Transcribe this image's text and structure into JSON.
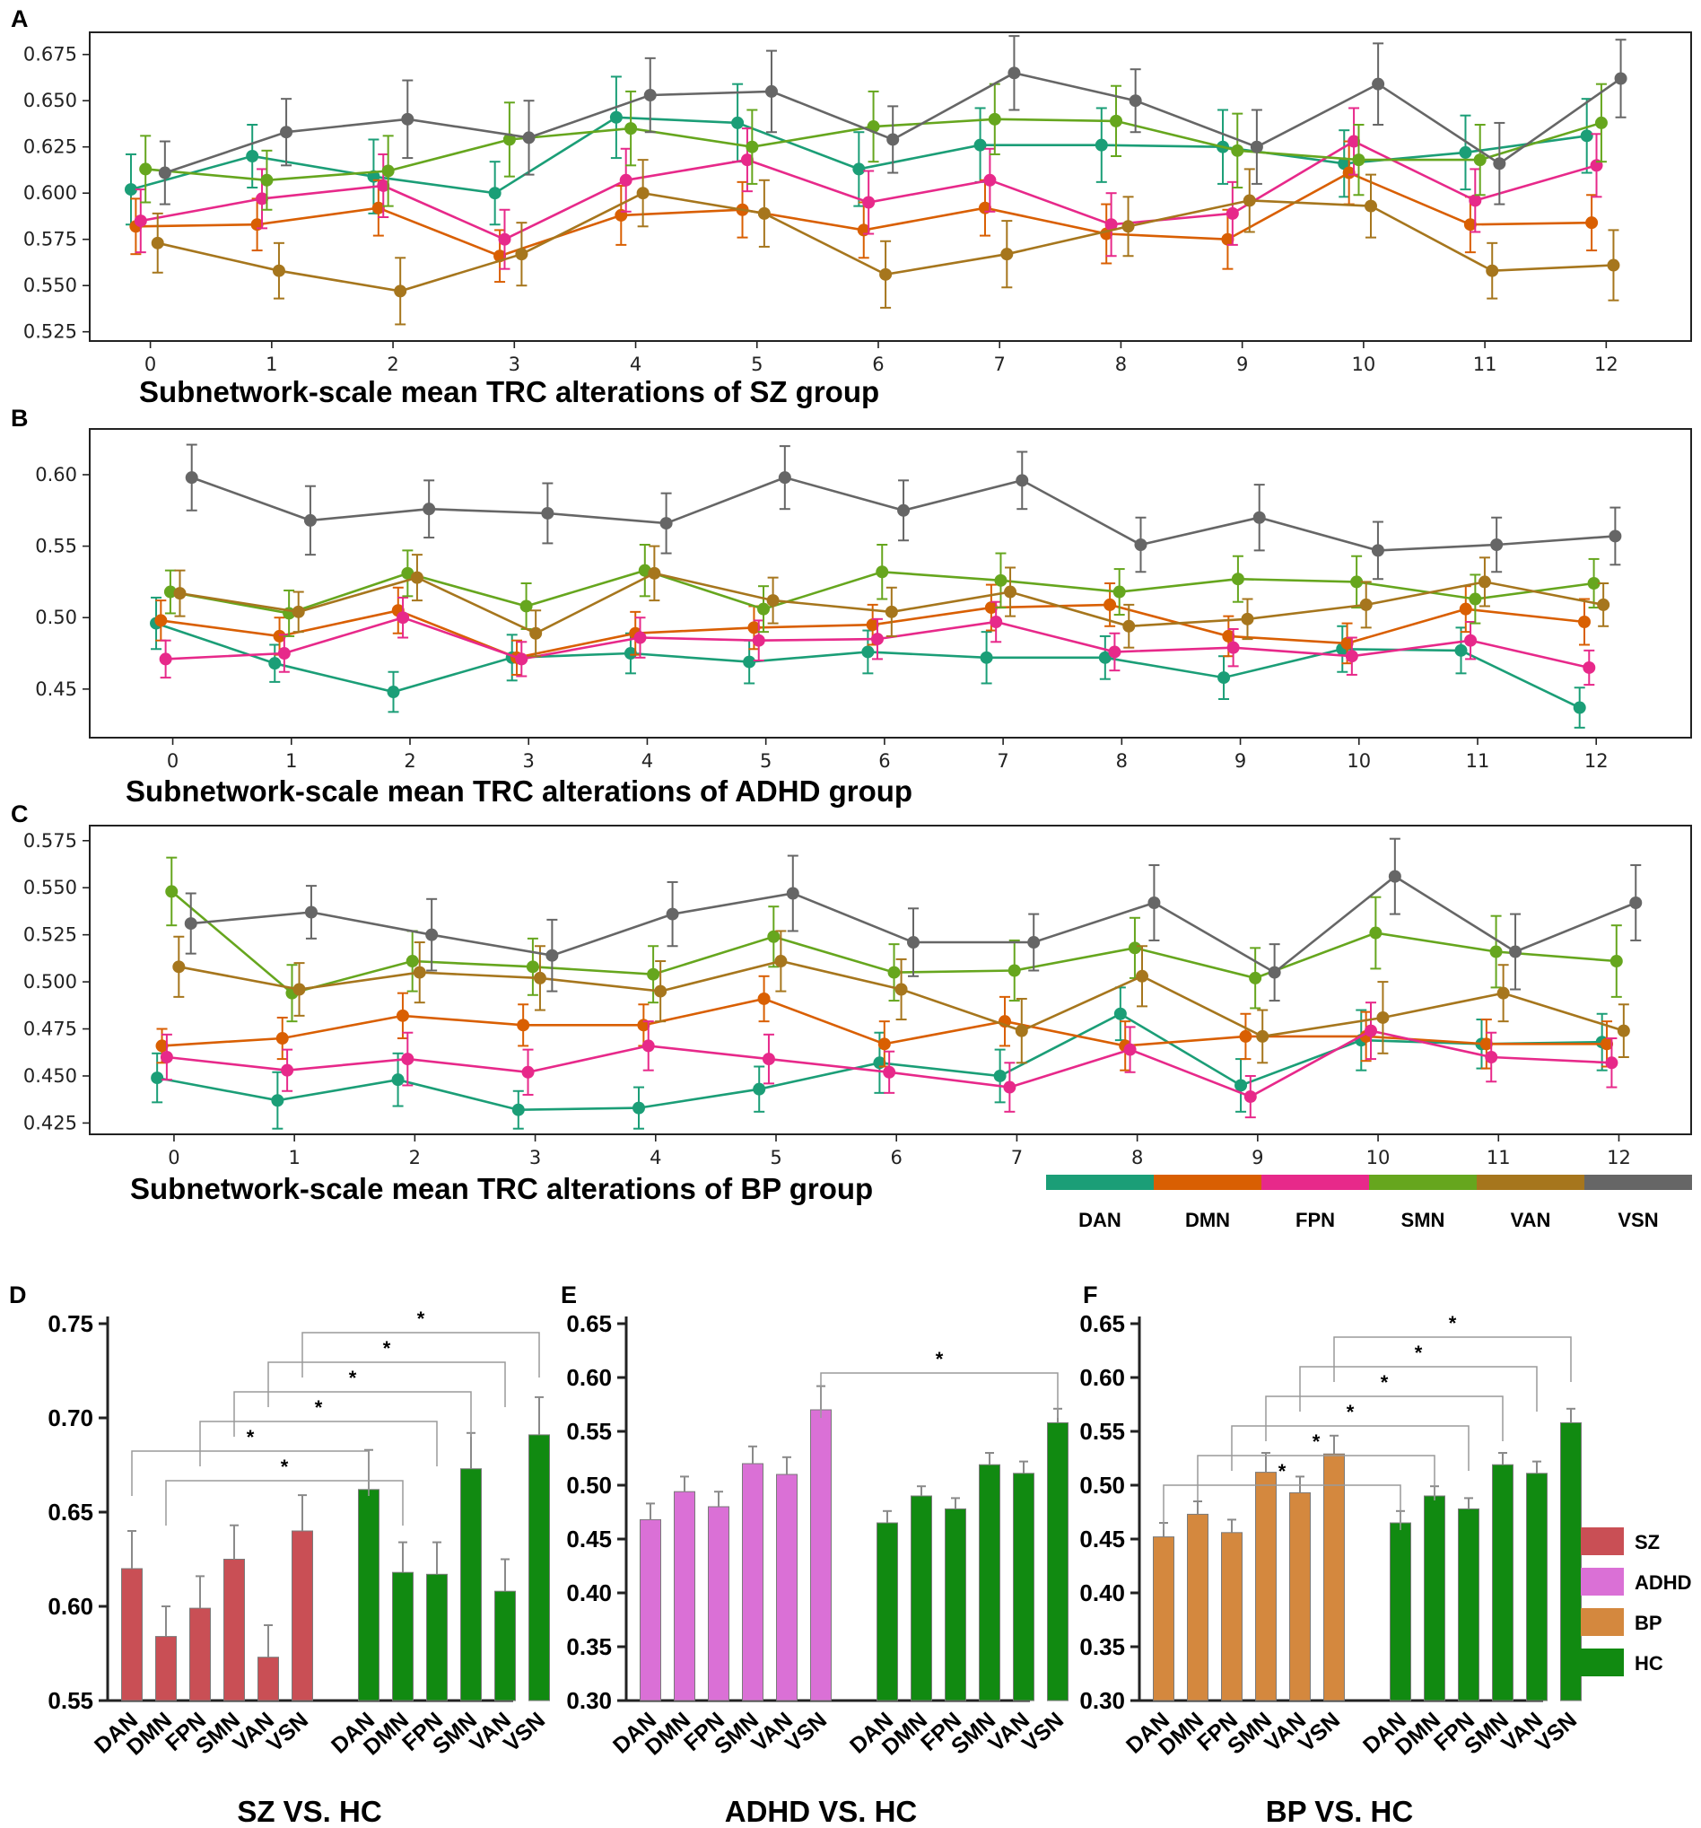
{
  "colors": {
    "DAN": "#1b9e77",
    "DMN": "#d95f02",
    "FPN": "#e7298a",
    "SMN": "#66a61e",
    "VAN": "#a6761d",
    "VSN": "#666666",
    "SZ": "#c94f55",
    "ADHD": "#da70d6",
    "BP": "#d4883e",
    "HC": "#118a11"
  },
  "network_legend": [
    "DAN",
    "DMN",
    "FPN",
    "SMN",
    "VAN",
    "VSN"
  ],
  "chart_data": [
    {
      "panel": "A",
      "type": "line",
      "title": "Subnetwork-scale mean TRC alterations of SZ group",
      "x": [
        0,
        1,
        2,
        3,
        4,
        5,
        6,
        7,
        8,
        9,
        10,
        11,
        12
      ],
      "xlim": [
        -0.5,
        12.7
      ],
      "ylim": [
        0.52,
        0.687
      ],
      "yticks": [
        "0.525",
        "0.550",
        "0.575",
        "0.600",
        "0.625",
        "0.650",
        "0.675"
      ],
      "series": [
        {
          "name": "DAN",
          "offset": -0.16,
          "values": [
            0.602,
            0.62,
            0.609,
            0.6,
            0.641,
            0.638,
            0.613,
            0.626,
            0.626,
            0.625,
            0.616,
            0.622,
            0.631
          ],
          "errors": [
            0.019,
            0.017,
            0.02,
            0.017,
            0.022,
            0.021,
            0.02,
            0.02,
            0.02,
            0.02,
            0.018,
            0.02,
            0.02
          ]
        },
        {
          "name": "DMN",
          "offset": -0.12,
          "values": [
            0.582,
            0.583,
            0.592,
            0.566,
            0.588,
            0.591,
            0.58,
            0.592,
            0.578,
            0.575,
            0.611,
            0.583,
            0.584
          ],
          "errors": [
            0.015,
            0.014,
            0.015,
            0.014,
            0.016,
            0.015,
            0.015,
            0.015,
            0.016,
            0.016,
            0.017,
            0.015,
            0.015
          ]
        },
        {
          "name": "FPN",
          "offset": -0.08,
          "values": [
            0.585,
            0.597,
            0.604,
            0.575,
            0.607,
            0.618,
            0.595,
            0.607,
            0.583,
            0.589,
            0.628,
            0.596,
            0.615
          ],
          "errors": [
            0.017,
            0.016,
            0.017,
            0.016,
            0.017,
            0.017,
            0.017,
            0.017,
            0.017,
            0.017,
            0.018,
            0.017,
            0.017
          ]
        },
        {
          "name": "SMN",
          "offset": -0.04,
          "values": [
            0.613,
            0.607,
            0.612,
            0.629,
            0.635,
            0.625,
            0.636,
            0.64,
            0.639,
            0.623,
            0.618,
            0.618,
            0.638
          ],
          "errors": [
            0.018,
            0.016,
            0.019,
            0.02,
            0.02,
            0.02,
            0.019,
            0.019,
            0.019,
            0.02,
            0.019,
            0.019,
            0.021
          ]
        },
        {
          "name": "VAN",
          "offset": 0.06,
          "values": [
            0.573,
            0.558,
            0.547,
            0.567,
            0.6,
            0.589,
            0.556,
            0.567,
            0.582,
            0.596,
            0.593,
            0.558,
            0.561
          ],
          "errors": [
            0.016,
            0.015,
            0.018,
            0.017,
            0.018,
            0.018,
            0.018,
            0.018,
            0.016,
            0.017,
            0.017,
            0.015,
            0.019
          ]
        },
        {
          "name": "VSN",
          "offset": 0.12,
          "values": [
            0.611,
            0.633,
            0.64,
            0.63,
            0.653,
            0.655,
            0.629,
            0.665,
            0.65,
            0.625,
            0.659,
            0.616,
            0.662
          ],
          "errors": [
            0.017,
            0.018,
            0.021,
            0.02,
            0.02,
            0.022,
            0.018,
            0.02,
            0.017,
            0.02,
            0.022,
            0.022,
            0.021
          ]
        }
      ]
    },
    {
      "panel": "B",
      "type": "line",
      "title": "Subnetwork-scale mean TRC alterations of ADHD group",
      "x": [
        0,
        1,
        2,
        3,
        4,
        5,
        6,
        7,
        8,
        9,
        10,
        11,
        12
      ],
      "xlim": [
        -0.7,
        12.8
      ],
      "ylim": [
        0.416,
        0.632
      ],
      "yticks": [
        "0.45",
        "0.50",
        "0.55",
        "0.60"
      ],
      "series": [
        {
          "name": "DAN",
          "offset": -0.14,
          "values": [
            0.496,
            0.468,
            0.448,
            0.472,
            0.475,
            0.469,
            0.476,
            0.472,
            0.472,
            0.458,
            0.478,
            0.477,
            0.437
          ],
          "errors": [
            0.018,
            0.013,
            0.014,
            0.016,
            0.014,
            0.015,
            0.015,
            0.018,
            0.015,
            0.015,
            0.016,
            0.016,
            0.014
          ]
        },
        {
          "name": "DMN",
          "offset": -0.1,
          "values": [
            0.498,
            0.487,
            0.505,
            0.472,
            0.489,
            0.493,
            0.495,
            0.507,
            0.509,
            0.487,
            0.482,
            0.506,
            0.497
          ],
          "errors": [
            0.014,
            0.013,
            0.016,
            0.012,
            0.015,
            0.015,
            0.014,
            0.016,
            0.015,
            0.014,
            0.014,
            0.016,
            0.016
          ]
        },
        {
          "name": "FPN",
          "offset": -0.06,
          "values": [
            0.471,
            0.475,
            0.5,
            0.471,
            0.486,
            0.484,
            0.485,
            0.497,
            0.476,
            0.479,
            0.473,
            0.484,
            0.465
          ],
          "errors": [
            0.013,
            0.013,
            0.014,
            0.012,
            0.014,
            0.014,
            0.014,
            0.014,
            0.013,
            0.013,
            0.013,
            0.013,
            0.012
          ]
        },
        {
          "name": "SMN",
          "offset": -0.02,
          "values": [
            0.518,
            0.503,
            0.531,
            0.508,
            0.533,
            0.506,
            0.532,
            0.526,
            0.518,
            0.527,
            0.525,
            0.513,
            0.524
          ],
          "errors": [
            0.015,
            0.016,
            0.016,
            0.016,
            0.018,
            0.016,
            0.019,
            0.019,
            0.016,
            0.016,
            0.018,
            0.017,
            0.017
          ]
        },
        {
          "name": "VAN",
          "offset": 0.06,
          "values": [
            0.517,
            0.504,
            0.528,
            0.489,
            0.531,
            0.512,
            0.504,
            0.518,
            0.494,
            0.499,
            0.509,
            0.525,
            0.509
          ],
          "errors": [
            0.016,
            0.014,
            0.016,
            0.016,
            0.019,
            0.016,
            0.017,
            0.017,
            0.015,
            0.014,
            0.016,
            0.017,
            0.015
          ]
        },
        {
          "name": "VSN",
          "offset": 0.16,
          "values": [
            0.598,
            0.568,
            0.576,
            0.573,
            0.566,
            0.598,
            0.575,
            0.596,
            0.551,
            0.57,
            0.547,
            0.551,
            0.557
          ],
          "errors": [
            0.023,
            0.024,
            0.02,
            0.021,
            0.021,
            0.022,
            0.021,
            0.02,
            0.019,
            0.023,
            0.02,
            0.019,
            0.02
          ]
        }
      ]
    },
    {
      "panel": "C",
      "type": "line",
      "title": "Subnetwork-scale mean TRC alterations of BP group",
      "x": [
        0,
        1,
        2,
        3,
        4,
        5,
        6,
        7,
        8,
        9,
        10,
        11,
        12
      ],
      "xlim": [
        -0.7,
        12.6
      ],
      "ylim": [
        0.419,
        0.583
      ],
      "yticks": [
        "0.425",
        "0.450",
        "0.475",
        "0.500",
        "0.525",
        "0.550",
        "0.575"
      ],
      "series": [
        {
          "name": "DAN",
          "offset": -0.14,
          "values": [
            0.449,
            0.437,
            0.448,
            0.432,
            0.433,
            0.443,
            0.457,
            0.45,
            0.483,
            0.445,
            0.469,
            0.467,
            0.468
          ],
          "errors": [
            0.013,
            0.015,
            0.014,
            0.01,
            0.011,
            0.012,
            0.016,
            0.014,
            0.014,
            0.014,
            0.016,
            0.013,
            0.015
          ]
        },
        {
          "name": "DMN",
          "offset": -0.1,
          "values": [
            0.466,
            0.47,
            0.482,
            0.477,
            0.477,
            0.491,
            0.467,
            0.479,
            0.466,
            0.471,
            0.471,
            0.467,
            0.467
          ],
          "errors": [
            0.009,
            0.011,
            0.012,
            0.011,
            0.011,
            0.012,
            0.012,
            0.013,
            0.013,
            0.012,
            0.013,
            0.013,
            0.012
          ]
        },
        {
          "name": "FPN",
          "offset": -0.06,
          "values": [
            0.46,
            0.453,
            0.459,
            0.452,
            0.466,
            0.459,
            0.452,
            0.444,
            0.464,
            0.439,
            0.474,
            0.46,
            0.457
          ],
          "errors": [
            0.012,
            0.011,
            0.014,
            0.012,
            0.013,
            0.013,
            0.011,
            0.013,
            0.012,
            0.011,
            0.015,
            0.013,
            0.013
          ]
        },
        {
          "name": "SMN",
          "offset": -0.02,
          "values": [
            0.548,
            0.494,
            0.511,
            0.508,
            0.504,
            0.524,
            0.505,
            0.506,
            0.518,
            0.502,
            0.526,
            0.516,
            0.511
          ],
          "errors": [
            0.018,
            0.015,
            0.016,
            0.015,
            0.015,
            0.016,
            0.015,
            0.016,
            0.016,
            0.016,
            0.019,
            0.019,
            0.019
          ]
        },
        {
          "name": "VAN",
          "offset": 0.04,
          "values": [
            0.508,
            0.496,
            0.505,
            0.502,
            0.495,
            0.511,
            0.496,
            0.474,
            0.503,
            0.471,
            0.481,
            0.494,
            0.474
          ],
          "errors": [
            0.016,
            0.014,
            0.016,
            0.017,
            0.016,
            0.016,
            0.016,
            0.017,
            0.016,
            0.014,
            0.019,
            0.015,
            0.014
          ]
        },
        {
          "name": "VSN",
          "offset": 0.14,
          "values": [
            0.531,
            0.537,
            0.525,
            0.514,
            0.536,
            0.547,
            0.521,
            0.521,
            0.542,
            0.505,
            0.556,
            0.516,
            0.542
          ],
          "errors": [
            0.016,
            0.014,
            0.019,
            0.019,
            0.017,
            0.02,
            0.018,
            0.015,
            0.02,
            0.015,
            0.02,
            0.02,
            0.02
          ]
        }
      ]
    },
    {
      "panel": "D",
      "type": "bar",
      "title": "SZ VS. HC",
      "groups": [
        {
          "name": "SZ",
          "color_key": "SZ"
        },
        {
          "name": "HC",
          "color_key": "HC"
        }
      ],
      "categories": [
        "DAN",
        "DMN",
        "FPN",
        "SMN",
        "VAN",
        "VSN"
      ],
      "series": [
        {
          "name": "SZ",
          "values": [
            0.62,
            0.584,
            0.599,
            0.625,
            0.573,
            0.64
          ],
          "errors": [
            0.02,
            0.016,
            0.017,
            0.018,
            0.017,
            0.019
          ]
        },
        {
          "name": "HC",
          "values": [
            0.662,
            0.618,
            0.617,
            0.673,
            0.608,
            0.691
          ],
          "errors": [
            0.021,
            0.016,
            0.017,
            0.019,
            0.017,
            0.02
          ]
        }
      ],
      "ylim": [
        0.55,
        0.75
      ],
      "yticks": [
        "0.55",
        "0.60",
        "0.65",
        "0.70",
        "0.75"
      ],
      "significance": [
        {
          "from": "DMN",
          "to": "DMN",
          "label": "*"
        },
        {
          "from": "DAN",
          "to": "DAN",
          "label": "*"
        },
        {
          "from": "FPN",
          "to": "FPN",
          "label": "*"
        },
        {
          "from": "SMN",
          "to": "SMN",
          "label": "*"
        },
        {
          "from": "VAN",
          "to": "VAN",
          "label": "*"
        },
        {
          "from": "VSN",
          "to": "VSN",
          "label": "*"
        }
      ]
    },
    {
      "panel": "E",
      "type": "bar",
      "title": "ADHD VS. HC",
      "groups": [
        {
          "name": "ADHD",
          "color_key": "ADHD"
        },
        {
          "name": "HC",
          "color_key": "HC"
        }
      ],
      "categories": [
        "DAN",
        "DMN",
        "FPN",
        "SMN",
        "VAN",
        "VSN"
      ],
      "series": [
        {
          "name": "ADHD",
          "values": [
            0.468,
            0.494,
            0.48,
            0.52,
            0.51,
            0.57
          ],
          "errors": [
            0.015,
            0.014,
            0.014,
            0.016,
            0.016,
            0.022
          ]
        },
        {
          "name": "HC",
          "values": [
            0.465,
            0.49,
            0.478,
            0.519,
            0.511,
            0.558
          ],
          "errors": [
            0.011,
            0.009,
            0.01,
            0.011,
            0.011,
            0.013
          ]
        }
      ],
      "ylim": [
        0.3,
        0.65
      ],
      "yticks": [
        "0.30",
        "0.35",
        "0.40",
        "0.45",
        "0.50",
        "0.55",
        "0.60",
        "0.65"
      ],
      "significance": [
        {
          "from": "VSN",
          "to": "VSN",
          "label": "*"
        }
      ]
    },
    {
      "panel": "F",
      "type": "bar",
      "title": "BP VS. HC",
      "groups": [
        {
          "name": "BP",
          "color_key": "BP"
        },
        {
          "name": "HC",
          "color_key": "HC"
        }
      ],
      "categories": [
        "DAN",
        "DMN",
        "FPN",
        "SMN",
        "VAN",
        "VSN"
      ],
      "series": [
        {
          "name": "BP",
          "values": [
            0.452,
            0.473,
            0.456,
            0.512,
            0.493,
            0.529
          ],
          "errors": [
            0.013,
            0.012,
            0.012,
            0.018,
            0.015,
            0.017
          ]
        },
        {
          "name": "HC",
          "values": [
            0.465,
            0.49,
            0.478,
            0.519,
            0.511,
            0.558
          ],
          "errors": [
            0.011,
            0.009,
            0.01,
            0.011,
            0.011,
            0.013
          ]
        }
      ],
      "ylim": [
        0.3,
        0.65
      ],
      "yticks": [
        "0.30",
        "0.35",
        "0.40",
        "0.45",
        "0.50",
        "0.55",
        "0.60",
        "0.65"
      ],
      "significance": [
        {
          "from": "DAN",
          "to": "DAN",
          "label": "*"
        },
        {
          "from": "DMN",
          "to": "DMN",
          "label": "*"
        },
        {
          "from": "FPN",
          "to": "FPN",
          "label": "*"
        },
        {
          "from": "SMN",
          "to": "SMN",
          "label": "*"
        },
        {
          "from": "VAN",
          "to": "VAN",
          "label": "*"
        },
        {
          "from": "VSN",
          "to": "VSN",
          "label": "*"
        }
      ]
    }
  ],
  "group_legend": [
    "SZ",
    "ADHD",
    "BP",
    "HC"
  ]
}
